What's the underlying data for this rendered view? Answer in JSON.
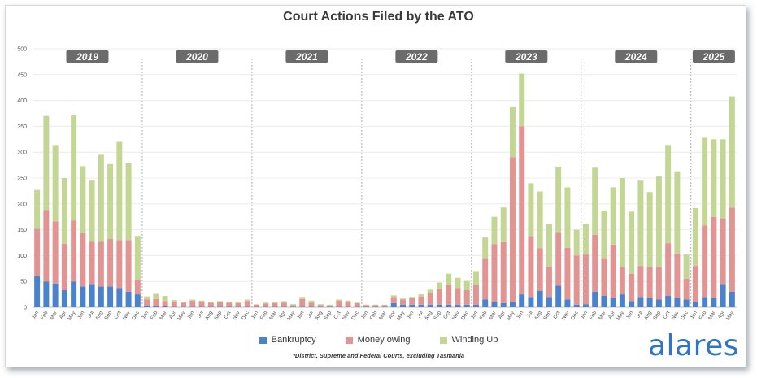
{
  "title": "Court Actions Filed by the ATO",
  "footnote": "*District, Supreme and Federal Courts, excluding Tasmania",
  "brand": "alares",
  "legend": [
    {
      "label": "Bankruptcy",
      "color": "#4a83cc"
    },
    {
      "label": "Money owing",
      "color": "#e29493"
    },
    {
      "label": "Winding Up",
      "color": "#c3d694"
    }
  ],
  "chart_data": {
    "type": "bar",
    "stacked": true,
    "title": "Court Actions Filed by the ATO",
    "ylim": [
      0,
      500
    ],
    "yticks": [
      0,
      50,
      100,
      150,
      200,
      250,
      300,
      350,
      400,
      450,
      500
    ],
    "year_labels": [
      "2019",
      "2020",
      "2021",
      "2022",
      "2023",
      "2024",
      "2025"
    ],
    "categories": [
      "Jan",
      "Feb",
      "Mar",
      "Apr",
      "May",
      "Jun",
      "Jul",
      "Aug",
      "Sep",
      "Oct",
      "Nov",
      "Dec",
      "Jan",
      "Feb",
      "Mar",
      "Apr",
      "May",
      "Jun",
      "Jul",
      "Aug",
      "Sep",
      "Oct",
      "Nov",
      "Dec",
      "Jan",
      "Feb",
      "Mar",
      "Apr",
      "May",
      "Jun",
      "Jul",
      "Aug",
      "Sep",
      "Oct",
      "Nov",
      "Dec",
      "Jan",
      "Feb",
      "Mar",
      "Apr",
      "May",
      "Jun",
      "Jul",
      "Aug",
      "Sep",
      "Oct",
      "Nov",
      "Dec",
      "Jan",
      "Feb",
      "Mar",
      "Apr",
      "May",
      "Jun",
      "Jul",
      "Aug",
      "Sep",
      "Oct",
      "Nov",
      "Dec",
      "Jan",
      "Feb",
      "Mar",
      "Apr",
      "May",
      "Jun",
      "Jul",
      "Aug",
      "Sep",
      "Oct",
      "Nov",
      "Dec",
      "Jan",
      "Feb",
      "Mar",
      "Apr",
      "May"
    ],
    "series": [
      {
        "name": "Bankruptcy",
        "values": [
          60,
          50,
          46,
          33,
          50,
          40,
          45,
          40,
          40,
          37,
          30,
          25,
          3,
          2,
          2,
          1,
          1,
          1,
          1,
          1,
          1,
          1,
          1,
          1,
          1,
          1,
          1,
          1,
          1,
          1,
          1,
          1,
          1,
          1,
          1,
          1,
          1,
          1,
          1,
          8,
          5,
          5,
          5,
          5,
          5,
          5,
          5,
          5,
          5,
          15,
          10,
          8,
          10,
          25,
          20,
          32,
          20,
          42,
          15,
          5,
          6,
          30,
          22,
          18,
          25,
          12,
          20,
          18,
          15,
          22,
          18,
          15,
          10,
          20,
          18,
          45,
          30
        ]
      },
      {
        "name": "Money owing",
        "values": [
          92,
          138,
          120,
          90,
          118,
          103,
          82,
          87,
          92,
          93,
          100,
          28,
          12,
          14,
          10,
          10,
          8,
          12,
          10,
          8,
          9,
          8,
          7,
          11,
          4,
          6,
          7,
          8,
          3,
          15,
          8,
          3,
          2,
          12,
          10,
          7,
          3,
          3,
          3,
          12,
          10,
          13,
          16,
          22,
          30,
          38,
          32,
          28,
          38,
          80,
          112,
          118,
          280,
          325,
          118,
          82,
          58,
          102,
          100,
          95,
          96,
          110,
          73,
          102,
          53,
          53,
          60,
          60,
          63,
          102,
          85,
          40,
          70,
          138,
          157,
          127,
          163
        ]
      },
      {
        "name": "Winding Up",
        "values": [
          75,
          182,
          148,
          127,
          203,
          130,
          118,
          168,
          145,
          190,
          150,
          85,
          6,
          10,
          10,
          3,
          2,
          2,
          2,
          2,
          2,
          2,
          3,
          3,
          1,
          2,
          2,
          3,
          2,
          4,
          4,
          2,
          2,
          2,
          2,
          1,
          1,
          1,
          1,
          3,
          2,
          2,
          4,
          7,
          13,
          22,
          20,
          18,
          27,
          40,
          53,
          67,
          97,
          102,
          102,
          110,
          83,
          128,
          117,
          50,
          60,
          130,
          92,
          112,
          172,
          120,
          165,
          145,
          175,
          190,
          160,
          47,
          112,
          170,
          150,
          153,
          215
        ]
      }
    ]
  }
}
